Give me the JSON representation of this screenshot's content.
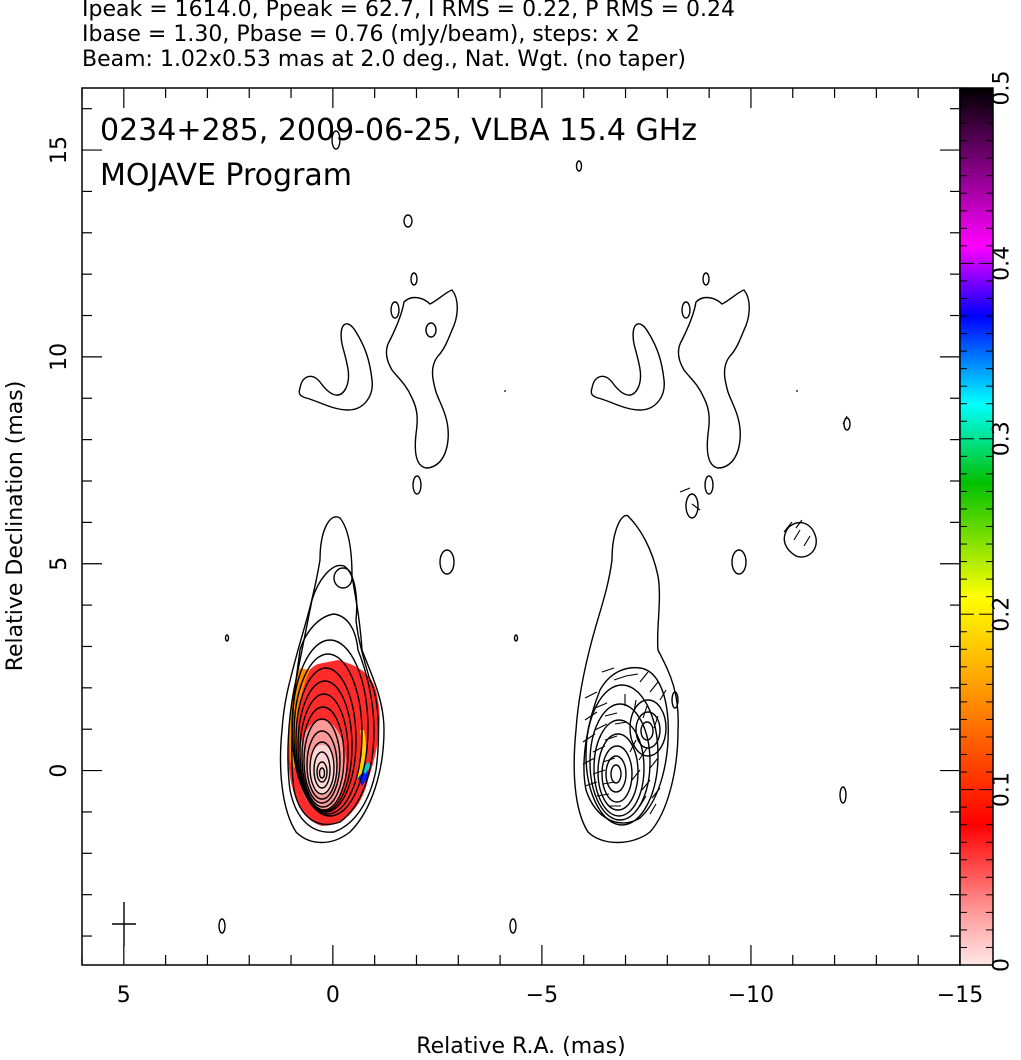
{
  "header": {
    "line1": "Ipeak = 1614.0, Ppeak = 62.7, I RMS = 0.22, P RMS = 0.24",
    "line2": "Ibase = 1.30, Pbase = 0.76 (mJy/beam), steps: x 2",
    "line3": "Beam: 1.02x0.53 mas at 2.0 deg., Nat. Wgt. (no taper)"
  },
  "overlay": {
    "line1": "0234+285, 2009-06-25, VLBA 15.4 GHz",
    "line2": "MOJAVE Program"
  },
  "chart_data": {
    "type": "contour-map",
    "xlabel": "Relative R.A. (mas)",
    "ylabel": "Relative Declination (mas)",
    "xlim": [
      6,
      -15
    ],
    "ylim": [
      -4.7,
      16.5
    ],
    "x_ticks": [
      5,
      0,
      -5,
      -10,
      -15
    ],
    "x_tick_labels": [
      "5",
      "0",
      "−5",
      "−10",
      "−15"
    ],
    "y_ticks": [
      0,
      5,
      10,
      15
    ],
    "y_tick_labels": [
      "0",
      "5",
      "10",
      "15"
    ],
    "colorbar": {
      "range": [
        0,
        0.5
      ],
      "ticks": [
        0,
        0.1,
        0.2,
        0.3,
        0.4,
        0.5
      ],
      "tick_labels": [
        "0",
        "0.1",
        "0.2",
        "0.3",
        "0.4",
        "0.5"
      ],
      "colormap": [
        "#ffe0e0",
        "#ff0000",
        "#ff8c00",
        "#ffff00",
        "#00c000",
        "#00ffff",
        "#0000ff",
        "#ff00ff",
        "#000000"
      ]
    },
    "panels": [
      {
        "name": "left",
        "ra_center": 0,
        "polarization_color": true
      },
      {
        "name": "right",
        "ra_center": -7,
        "vectors": true
      }
    ],
    "core": {
      "ra": 0,
      "dec": 0
    },
    "beam": {
      "major": 1.02,
      "minor": 0.53,
      "pa_deg": 2.0
    }
  }
}
